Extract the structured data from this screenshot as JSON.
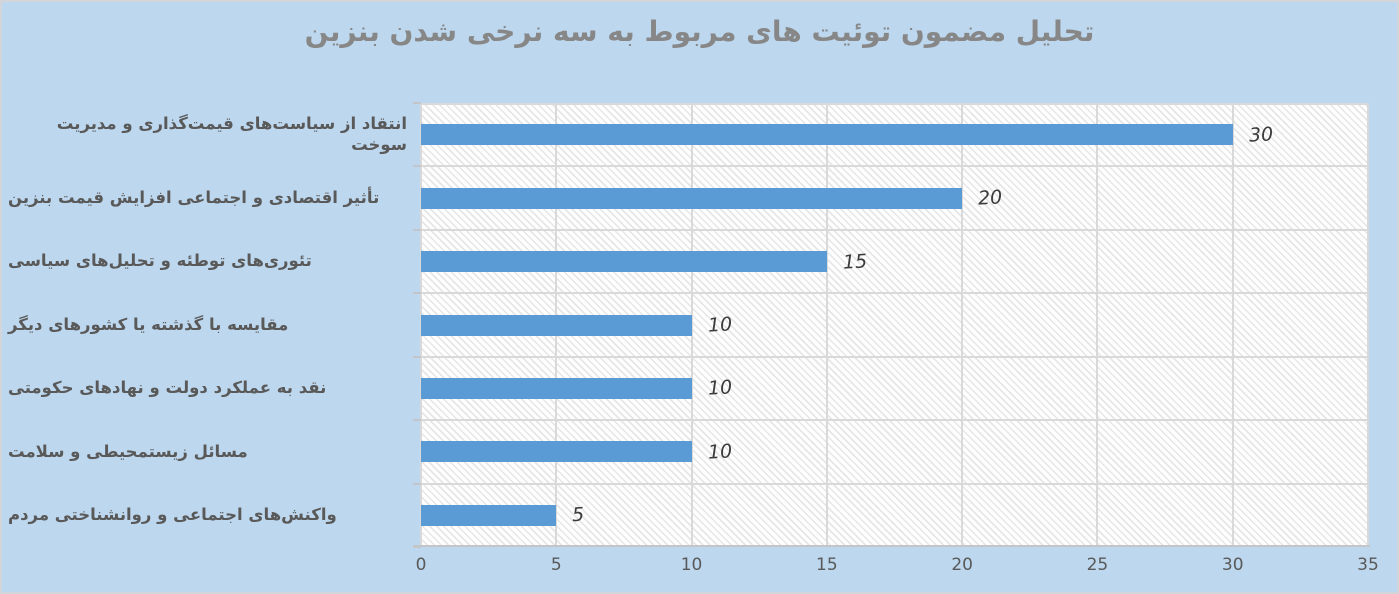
{
  "chart_data": {
    "type": "bar",
    "orientation": "horizontal",
    "title": "تحلیل مضمون توئیت های مربوط به سه نرخی شدن بنزین",
    "categories": [
      "انتقاد از سیاست‌های قیمت‌گذاری و مدیریت سوخت",
      "تأثیر اقتصادی و اجتماعی افزایش قیمت بنزین",
      "تئوری‌های توطئه و تحلیل‌های سیاسی",
      "مقایسه با گذشته یا کشورهای دیگر",
      "نقد به عملکرد دولت و نهادهای حکومتی",
      "مسائل زیستمحیطی و سلامت",
      "واکنش‌های اجتماعی و روانشناختی مردم"
    ],
    "values": [
      30,
      20,
      15,
      10,
      10,
      10,
      5
    ],
    "data_labels": [
      "30",
      "20",
      "15",
      "10",
      "10",
      "10",
      "5"
    ],
    "xlabel": "",
    "ylabel": "",
    "xlim": [
      0,
      35
    ],
    "x_ticks": [
      0,
      5,
      10,
      15,
      20,
      25,
      30,
      35
    ],
    "grid": true,
    "legend": "none",
    "colors": {
      "bar": "#5b9bd5",
      "background": "#bdd7ee",
      "plot_fill": "#fefefe",
      "plot_hatch": "#e6e6e6",
      "gridline": "#d9d9d9",
      "axis_line": "#c2c6ca",
      "title": "#878787",
      "category_label": "#595959",
      "tick_label": "#595959",
      "data_label": "#3b3b3b",
      "border": "#d2d5d9"
    }
  }
}
